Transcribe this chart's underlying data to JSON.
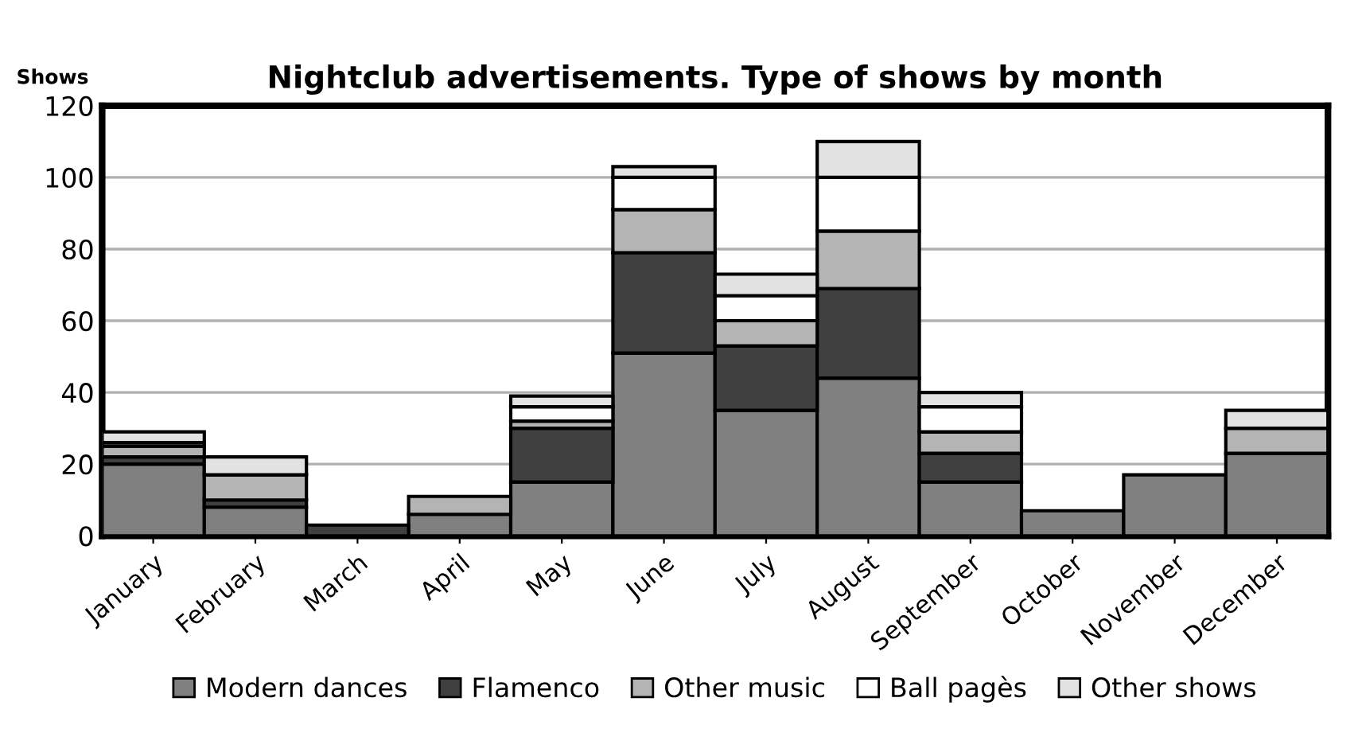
{
  "chart_data": {
    "type": "bar",
    "title": "Nightclub advertisements. Type of shows by month",
    "ylabel": "Shows",
    "categories": [
      "January",
      "February",
      "March",
      "April",
      "May",
      "June",
      "July",
      "August",
      "September",
      "October",
      "November",
      "December"
    ],
    "stacked": true,
    "series": [
      {
        "name": "Modern dances",
        "color": "#808080",
        "values": [
          20,
          8,
          null,
          6,
          15,
          51,
          35,
          44,
          15,
          7,
          17,
          23
        ]
      },
      {
        "name": "Flamenco",
        "color": "#404040",
        "values": [
          2,
          2,
          3,
          0,
          15,
          28,
          18,
          25,
          8,
          0,
          0,
          0
        ]
      },
      {
        "name": "Other music",
        "color": "#b4b4b4",
        "values": [
          3,
          7,
          0,
          5,
          2,
          12,
          7,
          16,
          6,
          0,
          0,
          7
        ]
      },
      {
        "name": "Ball pagès",
        "color": "#ffffff",
        "values": [
          1,
          0,
          0,
          0,
          4,
          9,
          7,
          15,
          7,
          0,
          0,
          0
        ]
      },
      {
        "name": "Other shows",
        "color": "#e2e2e2",
        "values": [
          3,
          5,
          0,
          0,
          3,
          3,
          6,
          10,
          4,
          0,
          0,
          5
        ]
      }
    ],
    "ylim": [
      0,
      120
    ],
    "yticks": [
      0,
      20,
      40,
      60,
      80,
      100,
      120
    ],
    "grid": "y",
    "legend": "bottom"
  }
}
